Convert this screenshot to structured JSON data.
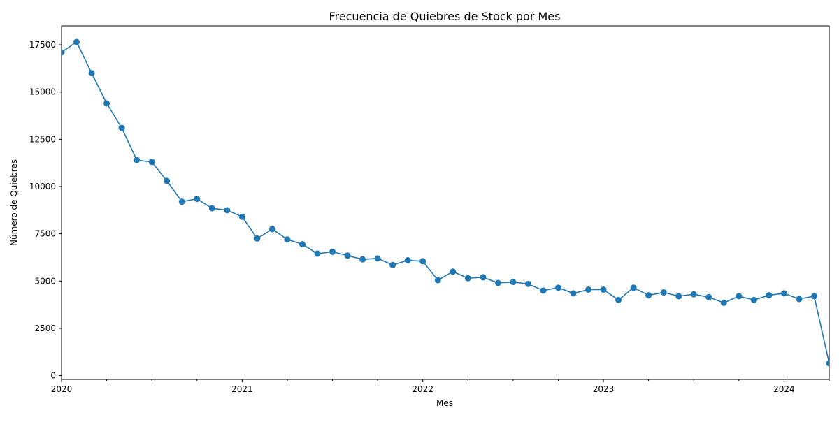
{
  "chart_data": {
    "type": "line",
    "title": "Frecuencia de Quiebres de Stock por Mes",
    "xlabel": "Mes",
    "ylabel": "Número de Quiebres",
    "x_start": "2020-01",
    "x_ticks_major": [
      "2020",
      "2021",
      "2022",
      "2023",
      "2024"
    ],
    "y_ticks": [
      0,
      2500,
      5000,
      7500,
      10000,
      12500,
      15000,
      17500
    ],
    "ylim": [
      -200,
      18500
    ],
    "grid": false,
    "legend": "none",
    "color": "#1f77b4",
    "series": [
      {
        "x": [
          "2020-01",
          "2020-02",
          "2020-03",
          "2020-04",
          "2020-05",
          "2020-06",
          "2020-07",
          "2020-08",
          "2020-09",
          "2020-10",
          "2020-11",
          "2020-12",
          "2021-01",
          "2021-02",
          "2021-03",
          "2021-04",
          "2021-05",
          "2021-06",
          "2021-07",
          "2021-08",
          "2021-09",
          "2021-10",
          "2021-11",
          "2021-12",
          "2022-01",
          "2022-02",
          "2022-03",
          "2022-04",
          "2022-05",
          "2022-06",
          "2022-07",
          "2022-08",
          "2022-09",
          "2022-10",
          "2022-11",
          "2022-12",
          "2023-01",
          "2023-02",
          "2023-03",
          "2023-04",
          "2023-05",
          "2023-06",
          "2023-07",
          "2023-08",
          "2023-09",
          "2023-10",
          "2023-11",
          "2023-12",
          "2024-01",
          "2024-02",
          "2024-03",
          "2024-04"
        ],
        "values": [
          17100,
          17650,
          16000,
          14400,
          13100,
          11400,
          11300,
          10300,
          9200,
          9350,
          8850,
          8750,
          8400,
          7250,
          7750,
          7200,
          6950,
          6450,
          6550,
          6350,
          6150,
          6200,
          5850,
          6100,
          6050,
          5050,
          5500,
          5150,
          5200,
          4900,
          4950,
          4850,
          4500,
          4650,
          4350,
          4550,
          4550,
          4000,
          4650,
          4250,
          4400,
          4200,
          4300,
          4150,
          3850,
          4200,
          4000,
          4250,
          4350,
          4050,
          4200,
          650
        ]
      }
    ]
  }
}
